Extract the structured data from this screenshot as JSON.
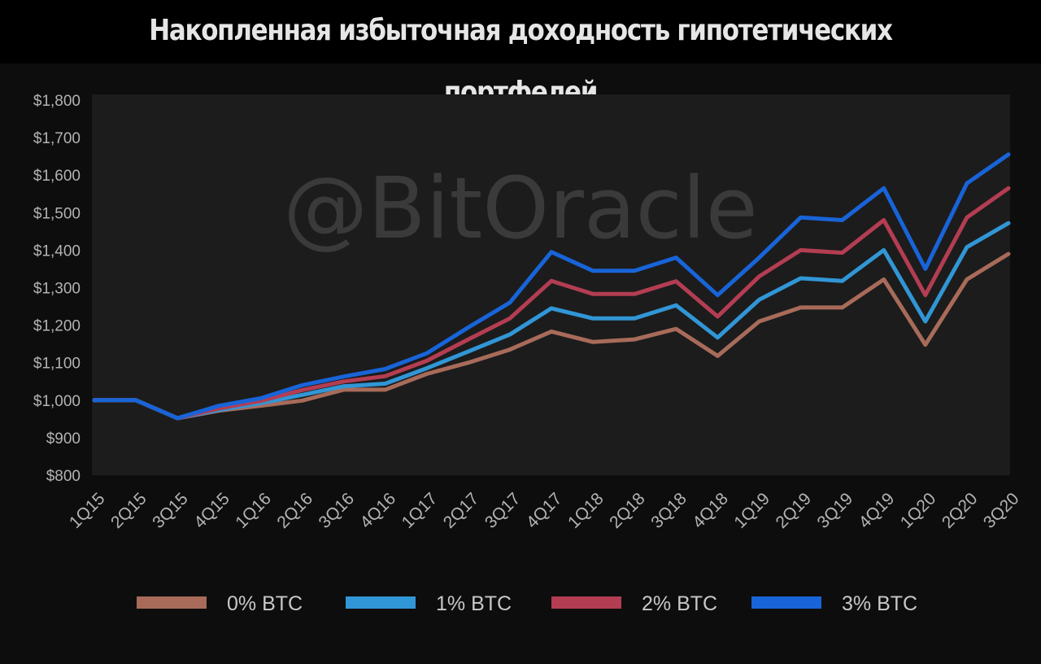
{
  "title": "Накопленная избыточная доходность гипотетических портфелей",
  "watermark": "@BitOracle",
  "chart_data": {
    "type": "line",
    "title": "Накопленная избыточная доходность гипотетических портфелей",
    "xlabel": "",
    "ylabel": "",
    "ylim": [
      800,
      1800
    ],
    "grid": false,
    "legend_position": "bottom",
    "y_ticks": [
      {
        "value": 800,
        "label": "$800"
      },
      {
        "value": 900,
        "label": "$900"
      },
      {
        "value": 1000,
        "label": "$1,000"
      },
      {
        "value": 1100,
        "label": "$1,100"
      },
      {
        "value": 1200,
        "label": "$1,200"
      },
      {
        "value": 1300,
        "label": "$1,300"
      },
      {
        "value": 1400,
        "label": "$1,400"
      },
      {
        "value": 1500,
        "label": "$1,500"
      },
      {
        "value": 1600,
        "label": "$1,600"
      },
      {
        "value": 1700,
        "label": "$1,700"
      },
      {
        "value": 1800,
        "label": "$1,800"
      }
    ],
    "categories": [
      "1Q15",
      "2Q15",
      "3Q15",
      "4Q15",
      "1Q16",
      "2Q16",
      "3Q16",
      "4Q16",
      "1Q17",
      "2Q17",
      "3Q17",
      "4Q17",
      "1Q18",
      "2Q18",
      "3Q18",
      "4Q18",
      "1Q19",
      "2Q19",
      "3Q19",
      "4Q19",
      "1Q20",
      "2Q20",
      "3Q20"
    ],
    "series": [
      {
        "name": "0% BTC",
        "color": "#a86b5a",
        "values": [
          1000,
          1000,
          952,
          972,
          985,
          999,
          1028,
          1028,
          1070,
          1100,
          1135,
          1183,
          1155,
          1162,
          1190,
          1118,
          1210,
          1247,
          1247,
          1322,
          1148,
          1322,
          1390
        ]
      },
      {
        "name": "1% BTC",
        "color": "#3196d6",
        "values": [
          1000,
          1000,
          952,
          974,
          992,
          1014,
          1037,
          1044,
          1085,
          1130,
          1175,
          1245,
          1218,
          1218,
          1253,
          1167,
          1268,
          1325,
          1318,
          1400,
          1210,
          1408,
          1472
        ]
      },
      {
        "name": "2% BTC",
        "color": "#b33d52",
        "values": [
          1000,
          1000,
          952,
          978,
          998,
          1027,
          1050,
          1064,
          1105,
          1162,
          1218,
          1318,
          1283,
          1283,
          1317,
          1223,
          1330,
          1400,
          1393,
          1480,
          1280,
          1487,
          1565
        ]
      },
      {
        "name": "3% BTC",
        "color": "#1864d8",
        "values": [
          1000,
          1000,
          952,
          985,
          1005,
          1040,
          1063,
          1083,
          1125,
          1194,
          1260,
          1395,
          1345,
          1345,
          1380,
          1280,
          1380,
          1487,
          1480,
          1565,
          1350,
          1578,
          1655
        ]
      }
    ]
  }
}
